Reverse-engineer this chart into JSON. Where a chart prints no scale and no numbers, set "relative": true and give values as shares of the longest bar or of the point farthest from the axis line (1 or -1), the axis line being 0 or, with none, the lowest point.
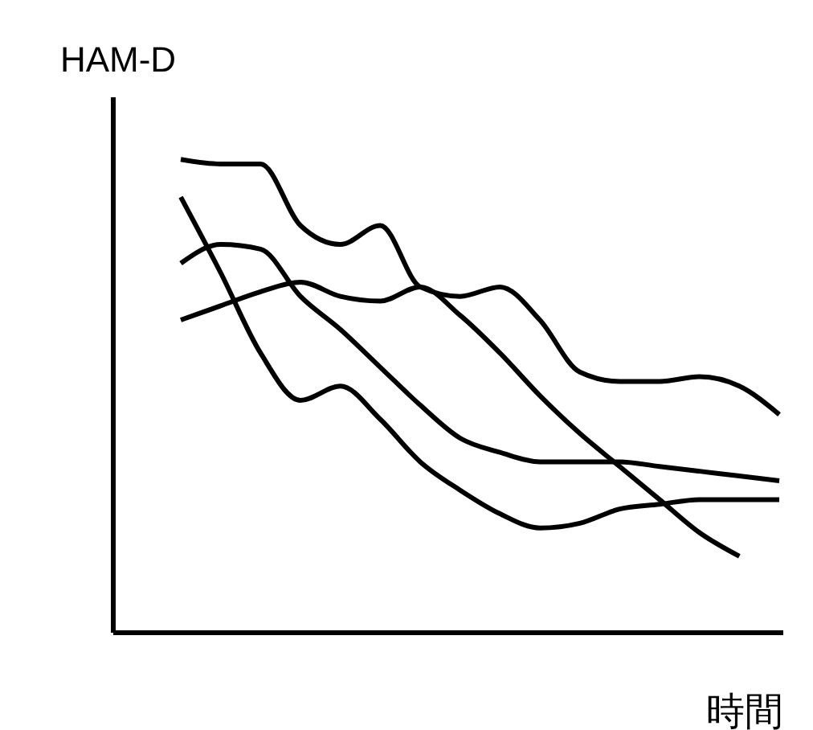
{
  "chart_data": {
    "type": "line",
    "xlabel": "時間",
    "ylabel": "HAM-D",
    "relative": true,
    "categories": [
      null,
      null,
      null,
      null,
      null,
      null,
      null,
      null,
      null,
      null,
      null,
      null,
      null,
      null,
      null,
      null
    ],
    "series": [
      {
        "color": "#000000",
        "values": [
          1.0,
          0.99,
          0.99,
          0.86,
          0.82,
          0.86,
          0.73,
          0.71,
          0.73,
          0.66,
          0.55,
          0.53,
          0.53,
          0.54,
          0.52,
          0.46
        ]
      },
      {
        "color": "#000000",
        "values": [
          0.78,
          0.82,
          0.81,
          0.71,
          0.64,
          0.56,
          0.48,
          0.41,
          0.38,
          0.36,
          0.36,
          0.36,
          0.35,
          0.34,
          0.33,
          0.32
        ]
      },
      {
        "color": "#000000",
        "values": [
          0.66,
          0.69,
          0.72,
          0.74,
          0.71,
          0.7,
          0.73,
          0.67,
          0.59,
          0.5,
          0.42,
          0.35,
          0.28,
          0.21,
          0.16,
          null
        ]
      },
      {
        "color": "#000000",
        "values": [
          0.92,
          0.76,
          0.59,
          0.49,
          0.52,
          0.45,
          0.36,
          0.3,
          0.25,
          0.22,
          0.23,
          0.26,
          0.27,
          0.28,
          0.28,
          0.28
        ]
      }
    ]
  }
}
